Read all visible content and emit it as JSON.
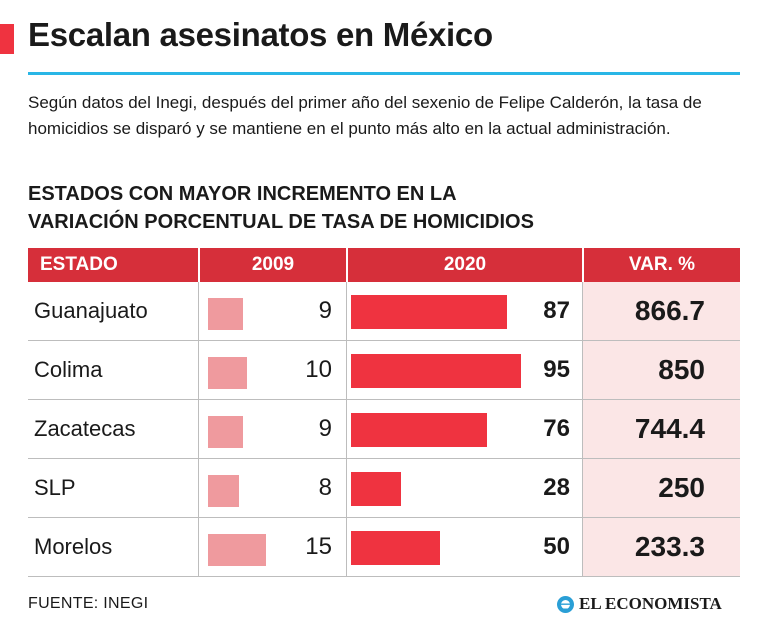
{
  "title": "Escalan asesinatos en México",
  "subtitle": "Según datos del Inegi, después del primer año del sexenio de Felipe Calderón, la tasa de homicidios se disparó y se mantiene en el punto más alto en la actual administración.",
  "chart_heading_line1": "ESTADOS CON MAYOR INCREMENTO EN LA",
  "chart_heading_line2": "VARIACIÓN PORCENTUAL DE TASA DE HOMICIDIOS",
  "chart_data": {
    "type": "table",
    "columns": [
      "ESTADO",
      "2009",
      "2020",
      "VAR. %"
    ],
    "rows": [
      {
        "estado": "Guanajuato",
        "v2009": 9,
        "v2020": 87,
        "var": "866.7"
      },
      {
        "estado": "Colima",
        "v2009": 10,
        "v2020": 95,
        "var": "850"
      },
      {
        "estado": "Zacatecas",
        "v2009": 9,
        "v2020": 76,
        "var": "744.4"
      },
      {
        "estado": "SLP",
        "v2009": 8,
        "v2020": 28,
        "var": "250"
      },
      {
        "estado": "Morelos",
        "v2009": 15,
        "v2020": 50,
        "var": "233.3"
      }
    ]
  },
  "source": "FUENTE: INEGI",
  "logo_text": "EL ECONOMISTA",
  "colors": {
    "accent": "#ef3340",
    "header": "#d62f3a",
    "bar_2009": "#ef9a9e",
    "bar_2020": "#ef3340",
    "var_bg": "#fbe6e6",
    "rule": "#29b6e6"
  }
}
